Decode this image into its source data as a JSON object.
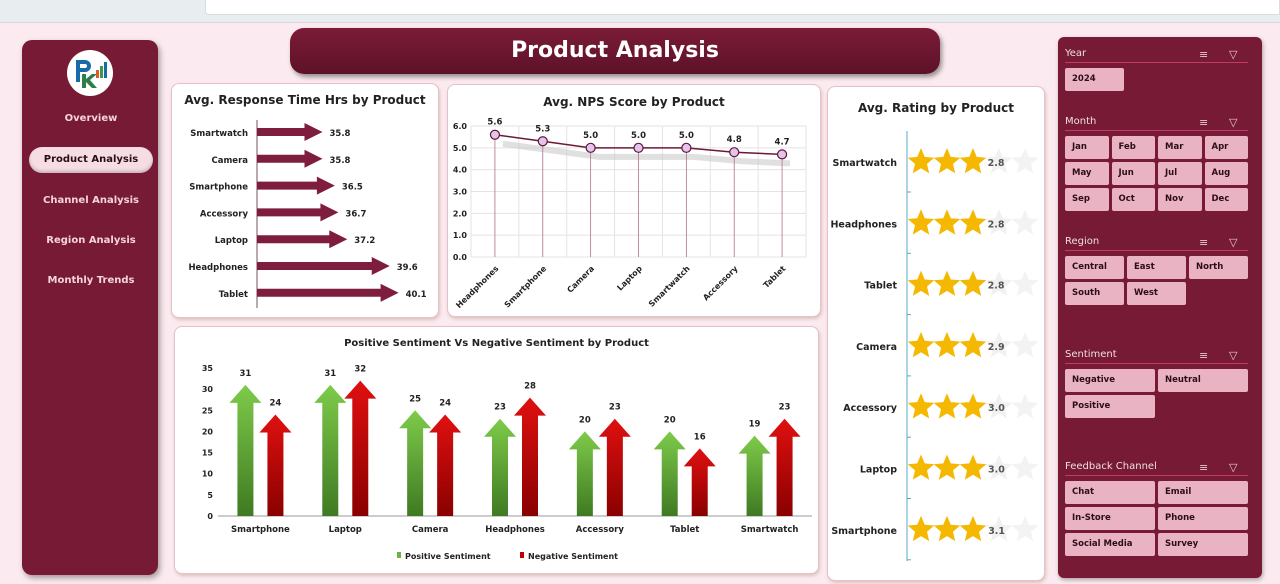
{
  "title": "Product Analysis",
  "sidebar": {
    "logo_text": "PK",
    "items": [
      {
        "label": "Overview"
      },
      {
        "label": "Product Analysis",
        "active": true
      },
      {
        "label": "Channel Analysis"
      },
      {
        "label": "Region Analysis"
      },
      {
        "label": "Monthly Trends"
      }
    ]
  },
  "colors": {
    "brand": "#761a36",
    "positive": "#6db33f",
    "negative": "#c00000",
    "star": "#f5b800"
  },
  "response_chart": {
    "type": "bar",
    "title": "Avg. Response Time Hrs by Product",
    "categories": [
      "Smartwatch",
      "Camera",
      "Smartphone",
      "Accessory",
      "Laptop",
      "Headphones",
      "Tablet"
    ],
    "values": [
      35.8,
      35.8,
      36.5,
      36.7,
      37.2,
      39.6,
      40.1
    ],
    "labels": [
      "35.8",
      "35.8",
      "36.5",
      "36.7",
      "37.2",
      "39.6",
      "40.1"
    ]
  },
  "nps_chart": {
    "type": "line",
    "title": "Avg. NPS Score by Product",
    "categories": [
      "Headphones",
      "Smartphone",
      "Camera",
      "Laptop",
      "Smartwatch",
      "Accessory",
      "Tablet"
    ],
    "values": [
      5.6,
      5.3,
      5.0,
      5.0,
      5.0,
      4.8,
      4.7
    ],
    "labels": [
      "5.6",
      "5.3",
      "5.0",
      "5.0",
      "5.0",
      "4.8",
      "4.7"
    ],
    "yticks": [
      "0.0",
      "1.0",
      "2.0",
      "3.0",
      "4.0",
      "5.0",
      "6.0"
    ],
    "ylim": [
      0,
      6
    ]
  },
  "rating_chart": {
    "type": "bar",
    "title": "Avg. Rating by Product",
    "categories": [
      "Smartwatch",
      "Headphones",
      "Tablet",
      "Camera",
      "Accessory",
      "Laptop",
      "Smartphone"
    ],
    "values": [
      2.8,
      2.8,
      2.8,
      2.9,
      3.0,
      3.0,
      3.1
    ],
    "labels": [
      "2.8",
      "2.8",
      "2.8",
      "2.9",
      "3.0",
      "3.0",
      "3.1"
    ],
    "max": 5
  },
  "sentiment_chart": {
    "type": "bar",
    "title": "Positive Sentiment Vs Negative Sentiment by Product",
    "categories": [
      "Smartphone",
      "Laptop",
      "Camera",
      "Headphones",
      "Accessory",
      "Tablet",
      "Smartwatch"
    ],
    "series": [
      {
        "name": "Positive Sentiment",
        "values": [
          31,
          31,
          25,
          23,
          20,
          20,
          19
        ]
      },
      {
        "name": "Negative Sentiment",
        "values": [
          24,
          32,
          24,
          28,
          23,
          16,
          23
        ]
      }
    ],
    "yticks": [
      "0",
      "5",
      "10",
      "15",
      "20",
      "25",
      "30",
      "35"
    ],
    "ylim": [
      0,
      35
    ],
    "legend": "bottom"
  },
  "slicers": [
    {
      "title": "Year",
      "items": [
        "2024"
      ],
      "cols": 1
    },
    {
      "title": "Month",
      "items": [
        "Jan",
        "Feb",
        "Mar",
        "Apr",
        "May",
        "Jun",
        "Jul",
        "Aug",
        "Sep",
        "Oct",
        "Nov",
        "Dec"
      ],
      "cols": 4
    },
    {
      "title": "Region",
      "items": [
        "Central",
        "East",
        "North",
        "South",
        "West"
      ],
      "cols": 3
    },
    {
      "title": "Sentiment",
      "items": [
        "Negative",
        "Neutral",
        "Positive"
      ],
      "cols": 2
    },
    {
      "title": "Feedback Channel",
      "items": [
        "Chat",
        "Email",
        "In-Store",
        "Phone",
        "Social Media",
        "Survey"
      ],
      "cols": 2
    }
  ]
}
